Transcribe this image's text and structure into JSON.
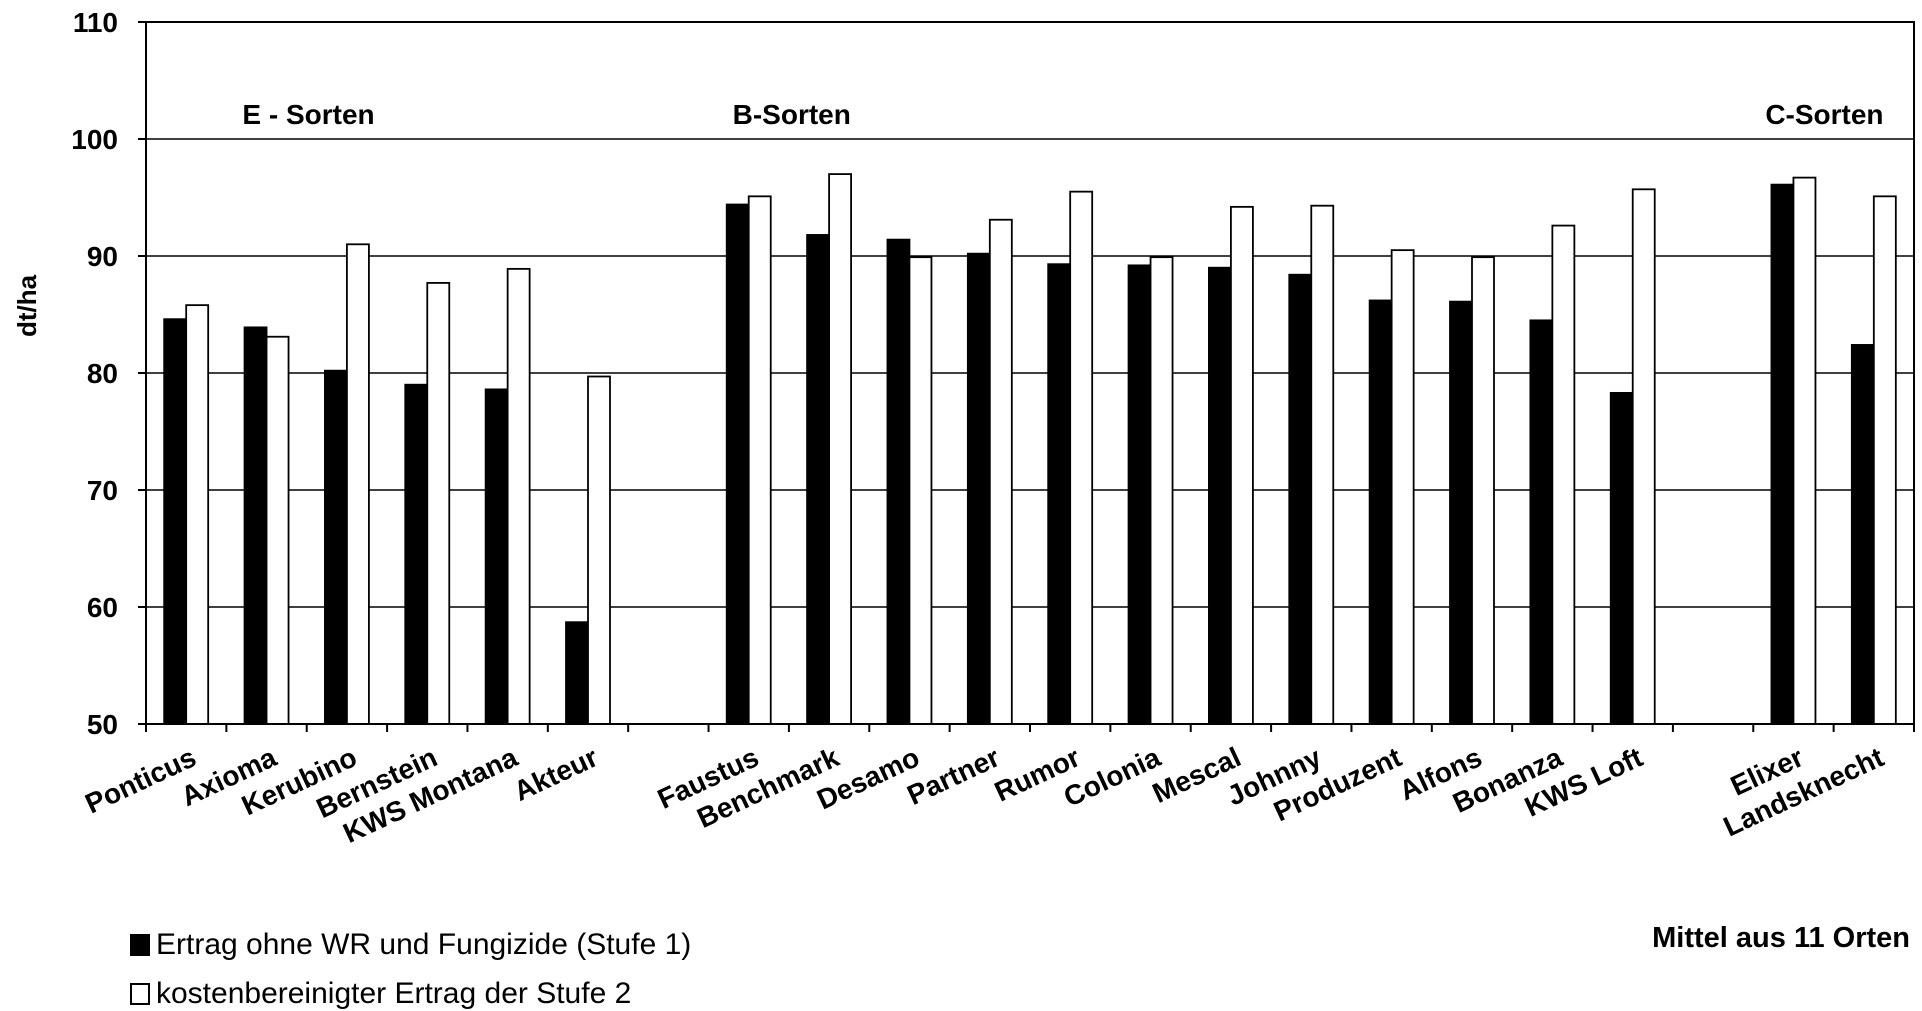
{
  "chart_data": {
    "type": "bar",
    "ylabel": "dt/ha",
    "ylim": [
      50,
      110
    ],
    "yticks": [
      50,
      60,
      70,
      80,
      90,
      100,
      110
    ],
    "grid": true,
    "groups": [
      {
        "label": "E - Sorten",
        "categories": [
          "Ponticus",
          "Axioma",
          "Kerubino",
          "Bernstein",
          "KWS Montana",
          "Akteur"
        ]
      },
      {
        "label": "B-Sorten",
        "categories": [
          "Faustus",
          "Benchmark",
          "Desamo",
          "Partner",
          "Rumor",
          "Colonia",
          "Mescal",
          "Johnny",
          "Produzent",
          "Alfons",
          "Bonanza",
          "KWS Loft"
        ]
      },
      {
        "label": "C-Sorten",
        "categories": [
          "Elixer",
          "Landsknecht"
        ]
      }
    ],
    "categories": [
      "Ponticus",
      "Axioma",
      "Kerubino",
      "Bernstein",
      "KWS Montana",
      "Akteur",
      "",
      "Faustus",
      "Benchmark",
      "Desamo",
      "Partner",
      "Rumor",
      "Colonia",
      "Mescal",
      "Johnny",
      "Produzent",
      "Alfons",
      "Bonanza",
      "KWS Loft",
      "",
      "Elixer",
      "Landsknecht"
    ],
    "series": [
      {
        "name": "Ertrag ohne WR und Fungizide (Stufe 1)",
        "color": "#000000",
        "values": [
          84.6,
          83.9,
          80.2,
          79.0,
          78.6,
          58.7,
          null,
          94.4,
          91.8,
          91.4,
          90.2,
          89.3,
          89.2,
          89.0,
          88.4,
          86.2,
          86.1,
          84.5,
          78.3,
          null,
          96.1,
          82.4
        ]
      },
      {
        "name": "kostenbereinigter Ertrag der Stufe 2",
        "color": "#ffffff",
        "values": [
          85.8,
          83.1,
          91.0,
          87.7,
          88.9,
          79.7,
          null,
          95.1,
          97.0,
          89.9,
          93.1,
          95.5,
          89.9,
          94.2,
          94.3,
          90.5,
          89.9,
          92.6,
          95.7,
          null,
          96.7,
          95.1
        ]
      }
    ]
  },
  "note": "Mittel aus 11 Orten"
}
